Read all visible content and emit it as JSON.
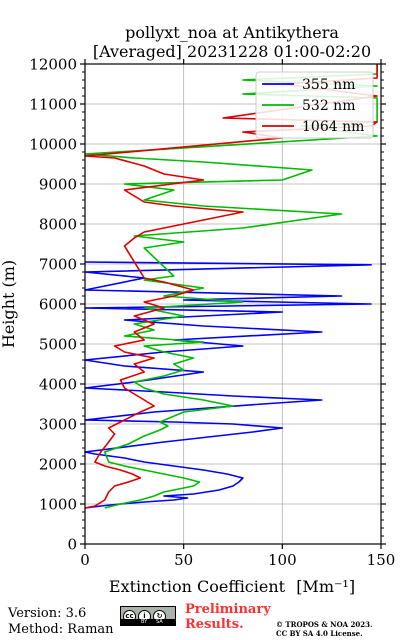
{
  "chart_data": {
    "type": "line",
    "title": "pollyxt_noa at Antikythera",
    "subtitle": "[Averaged] 20231228 01:00-02:20",
    "xlabel": "Extinction Coefficient",
    "xlabel_unit": "[Mm⁻¹]",
    "ylabel": "Height (m)",
    "xlim": [
      0,
      150
    ],
    "ylim": [
      0,
      12000
    ],
    "x_ticks": [
      0,
      50,
      100,
      150
    ],
    "y_ticks": [
      0,
      1000,
      2000,
      3000,
      4000,
      5000,
      6000,
      7000,
      8000,
      9000,
      10000,
      11000,
      12000
    ],
    "grid": true,
    "legend_position": "top-right",
    "series": [
      {
        "name": "355 nm",
        "color": "#0000ff",
        "points": [
          [
            0,
            900
          ],
          [
            8,
            950
          ],
          [
            18,
            1000
          ],
          [
            30,
            1050
          ],
          [
            45,
            1100
          ],
          [
            52,
            1150
          ],
          [
            40,
            1200
          ],
          [
            55,
            1250
          ],
          [
            68,
            1350
          ],
          [
            75,
            1450
          ],
          [
            78,
            1550
          ],
          [
            80,
            1650
          ],
          [
            72,
            1750
          ],
          [
            60,
            1850
          ],
          [
            45,
            1950
          ],
          [
            30,
            2050
          ],
          [
            20,
            2150
          ],
          [
            5,
            2250
          ],
          [
            0,
            2300
          ],
          [
            40,
            2550
          ],
          [
            85,
            2800
          ],
          [
            100,
            2900
          ],
          [
            75,
            3000
          ],
          [
            45,
            3050
          ],
          [
            0,
            3100
          ],
          [
            35,
            3300
          ],
          [
            90,
            3500
          ],
          [
            120,
            3600
          ],
          [
            75,
            3700
          ],
          [
            40,
            3800
          ],
          [
            0,
            3900
          ],
          [
            25,
            4050
          ],
          [
            60,
            4300
          ],
          [
            20,
            4450
          ],
          [
            0,
            4600
          ],
          [
            40,
            4800
          ],
          [
            80,
            4950
          ],
          [
            45,
            5100
          ],
          [
            120,
            5300
          ],
          [
            60,
            5450
          ],
          [
            20,
            5600
          ],
          [
            100,
            5800
          ],
          [
            0,
            5900
          ],
          [
            145,
            6000
          ],
          [
            50,
            6100
          ],
          [
            130,
            6200
          ],
          [
            0,
            6350
          ],
          [
            30,
            6650
          ],
          [
            0,
            6800
          ],
          [
            145,
            6980
          ],
          [
            0,
            7050
          ]
        ]
      },
      {
        "name": "532 nm",
        "color": "#00bb00",
        "points": [
          [
            10,
            900
          ],
          [
            18,
            1000
          ],
          [
            28,
            1100
          ],
          [
            35,
            1200
          ],
          [
            40,
            1300
          ],
          [
            45,
            1350
          ],
          [
            55,
            1450
          ],
          [
            58,
            1550
          ],
          [
            50,
            1650
          ],
          [
            40,
            1750
          ],
          [
            30,
            1850
          ],
          [
            20,
            1950
          ],
          [
            12,
            2050
          ],
          [
            10,
            2300
          ],
          [
            22,
            2500
          ],
          [
            30,
            2700
          ],
          [
            38,
            2850
          ],
          [
            42,
            2950
          ],
          [
            38,
            3050
          ],
          [
            50,
            3300
          ],
          [
            75,
            3450
          ],
          [
            60,
            3600
          ],
          [
            40,
            3750
          ],
          [
            30,
            3900
          ],
          [
            25,
            4050
          ],
          [
            40,
            4200
          ],
          [
            50,
            4350
          ],
          [
            45,
            4500
          ],
          [
            55,
            4650
          ],
          [
            40,
            4800
          ],
          [
            30,
            4950
          ],
          [
            60,
            5050
          ],
          [
            20,
            5200
          ],
          [
            35,
            5350
          ],
          [
            25,
            5500
          ],
          [
            50,
            5700
          ],
          [
            30,
            5900
          ],
          [
            80,
            6050
          ],
          [
            40,
            6200
          ],
          [
            60,
            6400
          ],
          [
            30,
            6600
          ],
          [
            45,
            6700
          ],
          [
            30,
            7400
          ],
          [
            50,
            7550
          ],
          [
            25,
            7700
          ],
          [
            80,
            7900
          ],
          [
            130,
            8250
          ],
          [
            60,
            8450
          ],
          [
            30,
            8600
          ],
          [
            45,
            8850
          ],
          [
            20,
            9000
          ],
          [
            100,
            9100
          ],
          [
            115,
            9350
          ],
          [
            60,
            9550
          ],
          [
            25,
            9650
          ],
          [
            0,
            9750
          ],
          [
            148,
            10200
          ],
          [
            110,
            10450
          ],
          [
            148,
            10550
          ],
          [
            148,
            11150
          ],
          [
            80,
            11250
          ],
          [
            148,
            11450
          ],
          [
            80,
            11600
          ],
          [
            148,
            11750
          ],
          [
            148,
            12000
          ]
        ]
      },
      {
        "name": "1064 nm",
        "color": "#dd0000",
        "points": [
          [
            0,
            900
          ],
          [
            5,
            950
          ],
          [
            10,
            1100
          ],
          [
            12,
            1300
          ],
          [
            15,
            1450
          ],
          [
            22,
            1550
          ],
          [
            28,
            1650
          ],
          [
            24,
            1750
          ],
          [
            18,
            1850
          ],
          [
            10,
            1950
          ],
          [
            5,
            2050
          ],
          [
            8,
            2300
          ],
          [
            12,
            2550
          ],
          [
            15,
            2750
          ],
          [
            12,
            2900
          ],
          [
            18,
            3050
          ],
          [
            28,
            3300
          ],
          [
            35,
            3450
          ],
          [
            30,
            3600
          ],
          [
            25,
            3750
          ],
          [
            20,
            3900
          ],
          [
            18,
            4100
          ],
          [
            30,
            4300
          ],
          [
            25,
            4500
          ],
          [
            35,
            4650
          ],
          [
            20,
            4800
          ],
          [
            15,
            4950
          ],
          [
            30,
            5100
          ],
          [
            25,
            5300
          ],
          [
            35,
            5500
          ],
          [
            25,
            5700
          ],
          [
            40,
            5900
          ],
          [
            30,
            6050
          ],
          [
            45,
            6200
          ],
          [
            55,
            6350
          ],
          [
            40,
            6550
          ],
          [
            30,
            6650
          ],
          [
            20,
            7450
          ],
          [
            25,
            7650
          ],
          [
            30,
            7800
          ],
          [
            60,
            8100
          ],
          [
            80,
            8300
          ],
          [
            45,
            8450
          ],
          [
            30,
            8550
          ],
          [
            20,
            8850
          ],
          [
            60,
            9100
          ],
          [
            40,
            9250
          ],
          [
            30,
            9450
          ],
          [
            15,
            9650
          ],
          [
            0,
            9700
          ],
          [
            100,
            10150
          ],
          [
            80,
            10300
          ],
          [
            145,
            10450
          ],
          [
            148,
            10550
          ],
          [
            70,
            10650
          ],
          [
            148,
            11200
          ],
          [
            100,
            11500
          ],
          [
            148,
            11650
          ],
          [
            148,
            11850
          ],
          [
            148,
            12000
          ]
        ]
      }
    ]
  },
  "footer": {
    "version": "Version: 3.6",
    "method": "Method: Raman",
    "preliminary_line1": "Preliminary",
    "preliminary_line2": "Results.",
    "copyright_line1": "© TROPOS & NOA 2023.",
    "copyright_line2": "CC BY SA 4.0 License.",
    "cc_badge_text": "cc",
    "cc_by_text": "BY",
    "cc_sa_text": "SA"
  }
}
